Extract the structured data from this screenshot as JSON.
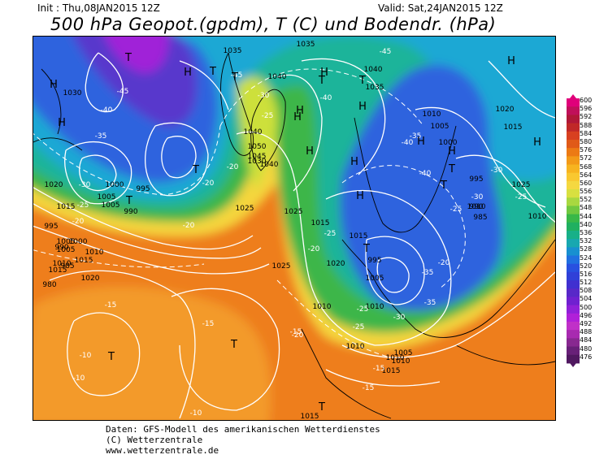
{
  "header": {
    "init_label": "Init : Thu,08JAN2015 12Z",
    "valid_label": "Valid: Sat,24JAN2015 12Z",
    "title": "500 hPa Geopot.(gpdm), T (C) und Bodendr. (hPa)"
  },
  "footer": {
    "line1": "Daten: GFS-Modell des amerikanischen Wetterdienstes",
    "line2": "(C) Wetterzentrale",
    "line3": "www.wetterzentrale.de"
  },
  "scale": {
    "labels": [
      "600",
      "596",
      "592",
      "588",
      "584",
      "580",
      "576",
      "572",
      "568",
      "564",
      "560",
      "556",
      "552",
      "548",
      "544",
      "540",
      "536",
      "532",
      "528",
      "524",
      "520",
      "516",
      "512",
      "508",
      "504",
      "500",
      "496",
      "492",
      "488",
      "484",
      "480",
      "476"
    ],
    "colors": [
      "#e0007a",
      "#c0105a",
      "#b01838",
      "#c02828",
      "#d84020",
      "#e05a18",
      "#ec7a14",
      "#f39a18",
      "#f7b420",
      "#f9c830",
      "#f5d840",
      "#d8e040",
      "#a8d840",
      "#70c840",
      "#38b848",
      "#20b060",
      "#18b088",
      "#18a8b0",
      "#1890d0",
      "#2070e0",
      "#2850e0",
      "#3040d8",
      "#4030d0",
      "#5828c8",
      "#7020d0",
      "#9020d8",
      "#b020d8",
      "#c030c8",
      "#a82ab0",
      "#882890",
      "#682078",
      "#501860"
    ]
  },
  "map": {
    "colors": {
      "orange": "#ee7e1e",
      "orange_light": "#f39a2a",
      "yellow": "#f5d63e",
      "yellow_green": "#cde03a",
      "green": "#3db64a",
      "teal": "#1eb49a",
      "cyan": "#1aa8d4",
      "blue": "#2f64de",
      "violet": "#5838cc",
      "purple": "#a020d8",
      "isobar": "#ffffff",
      "coast": "#000000"
    },
    "pressure_labels": [
      "1030",
      "1020",
      "1015",
      "995",
      "990",
      "985",
      "980",
      "1005",
      "1000",
      "1005",
      "995",
      "990",
      "1000",
      "1005",
      "1010",
      "1015",
      "1005",
      "1010",
      "1015",
      "1020",
      "1035",
      "1040",
      "1045",
      "1050",
      "1040",
      "1040",
      "1035",
      "1030",
      "1025",
      "1025",
      "1025",
      "1015",
      "1015",
      "1010",
      "1015",
      "1020",
      "1010",
      "1040",
      "1035",
      "1010",
      "1020",
      "1015",
      "1005",
      "1000",
      "995",
      "990",
      "985",
      "995",
      "1005",
      "1010",
      "1005",
      "1010",
      "1015",
      "1010",
      "1010",
      "1025",
      "1015",
      "1010"
    ],
    "temp_labels": [
      "-45",
      "-40",
      "-35",
      "-30",
      "-25",
      "-20",
      "-20",
      "-20",
      "-45",
      "-30",
      "-25",
      "-20",
      "-15",
      "-15",
      "-10",
      "-10",
      "-10",
      "-15",
      "-15",
      "-15",
      "-20",
      "-25",
      "-30",
      "-35",
      "-35",
      "-40",
      "-45",
      "-40",
      "-40",
      "-35",
      "-30",
      "-25",
      "-25",
      "-20",
      "-25",
      "-20",
      "-30",
      "-25"
    ],
    "centers": [
      {
        "label": "T",
        "kind": "low"
      },
      {
        "label": "H",
        "kind": "high"
      },
      {
        "label": "T",
        "kind": "low"
      },
      {
        "label": "H",
        "kind": "high"
      },
      {
        "label": "T",
        "kind": "low"
      },
      {
        "label": "T",
        "kind": "low"
      },
      {
        "label": "T",
        "kind": "low"
      },
      {
        "label": "H",
        "kind": "high"
      },
      {
        "label": "T",
        "kind": "low"
      },
      {
        "label": "T",
        "kind": "low"
      },
      {
        "label": "H",
        "kind": "high"
      },
      {
        "label": "H",
        "kind": "high"
      },
      {
        "label": "H",
        "kind": "high"
      },
      {
        "label": "T",
        "kind": "low"
      },
      {
        "label": "H",
        "kind": "high"
      },
      {
        "label": "H",
        "kind": "high"
      },
      {
        "label": "H",
        "kind": "high"
      },
      {
        "label": "T",
        "kind": "low"
      },
      {
        "label": "T",
        "kind": "low"
      },
      {
        "label": "H",
        "kind": "high"
      },
      {
        "label": "T",
        "kind": "low"
      },
      {
        "label": "H",
        "kind": "high"
      },
      {
        "label": "H",
        "kind": "high"
      },
      {
        "label": "H",
        "kind": "high"
      },
      {
        "label": "H",
        "kind": "high"
      },
      {
        "label": "T",
        "kind": "low"
      },
      {
        "label": "T",
        "kind": "low"
      }
    ]
  }
}
